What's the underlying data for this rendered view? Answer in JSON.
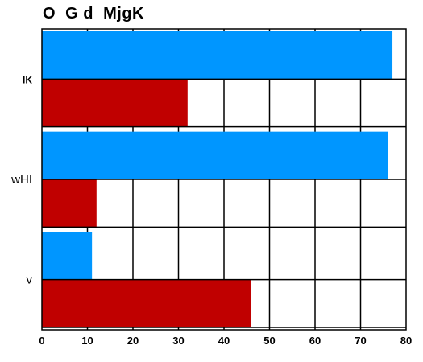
{
  "chart_data": {
    "type": "bar",
    "orientation": "horizontal",
    "title": "O  G d  MjgK",
    "xlabel": "",
    "ylabel": "",
    "categories": [
      "IK",
      "wHI",
      "v"
    ],
    "series": [
      {
        "color": "#0096ff",
        "values": [
          77,
          76,
          11
        ]
      },
      {
        "color": "#c00000",
        "values": [
          32,
          12,
          46
        ]
      }
    ],
    "xlim": [
      0,
      80
    ],
    "xticks": [
      0,
      10,
      20,
      30,
      40,
      50,
      60,
      70,
      80
    ],
    "grid": true,
    "legend": "none"
  }
}
